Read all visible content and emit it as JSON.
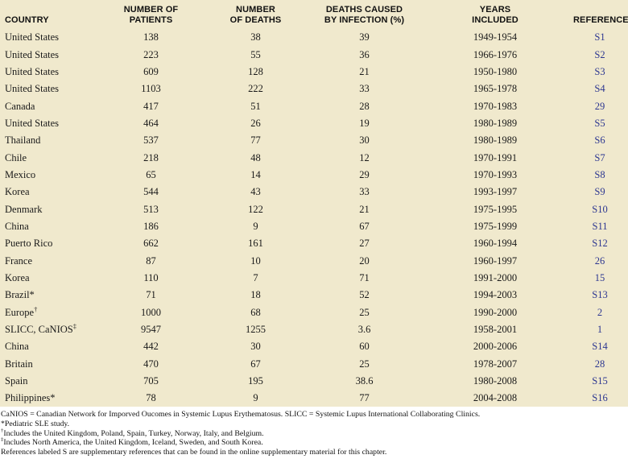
{
  "colors": {
    "table_bg": "#f0e9cd",
    "reference_blue": "#2d3791",
    "text_color": "#1a1a1a"
  },
  "table": {
    "columns": [
      {
        "label": "COUNTRY"
      },
      {
        "label": "NUMBER OF\nPATIENTS"
      },
      {
        "label": "NUMBER\nOF DEATHS"
      },
      {
        "label": "DEATHS CAUSED\nBY INFECTION (%)"
      },
      {
        "label": "YEARS\nINCLUDED"
      },
      {
        "label": "REFERENCE"
      }
    ],
    "rows": [
      [
        "United States",
        "138",
        "38",
        "39",
        "1949-1954",
        "S1"
      ],
      [
        "United States",
        "223",
        "55",
        "36",
        "1966-1976",
        "S2"
      ],
      [
        "United States",
        "609",
        "128",
        "21",
        "1950-1980",
        "S3"
      ],
      [
        "United States",
        "1103",
        "222",
        "33",
        "1965-1978",
        "S4"
      ],
      [
        "Canada",
        "417",
        "51",
        "28",
        "1970-1983",
        "29"
      ],
      [
        "United States",
        "464",
        "26",
        "19",
        "1980-1989",
        "S5"
      ],
      [
        "Thailand",
        "537",
        "77",
        "30",
        "1980-1989",
        "S6"
      ],
      [
        "Chile",
        "218",
        "48",
        "12",
        "1970-1991",
        "S7"
      ],
      [
        "Mexico",
        "65",
        "14",
        "29",
        "1970-1993",
        "S8"
      ],
      [
        "Korea",
        "544",
        "43",
        "33",
        "1993-1997",
        "S9"
      ],
      [
        "Denmark",
        "513",
        "122",
        "21",
        "1975-1995",
        "S10"
      ],
      [
        "China",
        "186",
        "9",
        "67",
        "1975-1999",
        "S11"
      ],
      [
        "Puerto Rico",
        "662",
        "161",
        "27",
        "1960-1994",
        "S12"
      ],
      [
        "France",
        "87",
        "10",
        "20",
        "1960-1997",
        "26"
      ],
      [
        "Korea",
        "110",
        "7",
        "71",
        "1991-2000",
        "15"
      ],
      [
        "Brazil*",
        "71",
        "18",
        "52",
        "1994-2003",
        "S13"
      ],
      [
        "Europe†",
        "1000",
        "68",
        "25",
        "1990-2000",
        "2"
      ],
      [
        "SLICC, CaNIOS‡",
        "9547",
        "1255",
        "3.6",
        "1958-2001",
        "1"
      ],
      [
        "China",
        "442",
        "30",
        "60",
        "2000-2006",
        "S14"
      ],
      [
        "Britain",
        "470",
        "67",
        "25",
        "1978-2007",
        "28"
      ],
      [
        "Spain",
        "705",
        "195",
        "38.6",
        "1980-2008",
        "S15"
      ],
      [
        "Philippines*",
        "78",
        "9",
        "77",
        "2004-2008",
        "S16"
      ]
    ]
  },
  "footnotes": [
    {
      "sup": "",
      "text": "CaNIOS = Canadian Network for Imporved Oucomes in Systemic Lupus Erythematosus. SLICC = Systemic Lupus International Collaborating Clinics."
    },
    {
      "sup": "",
      "text": "*Pediatric SLE study."
    },
    {
      "sup": "†",
      "text": "Includes the United Kingdom, Poland, Spain, Turkey, Norway, Italy, and Belgium."
    },
    {
      "sup": "‡",
      "text": "Includes North America, the United Kingdom, Iceland, Sweden, and South Korea."
    },
    {
      "sup": "",
      "text": "References labeled S are supplementary references that can be found in the online supplementary material for this chapter."
    }
  ]
}
